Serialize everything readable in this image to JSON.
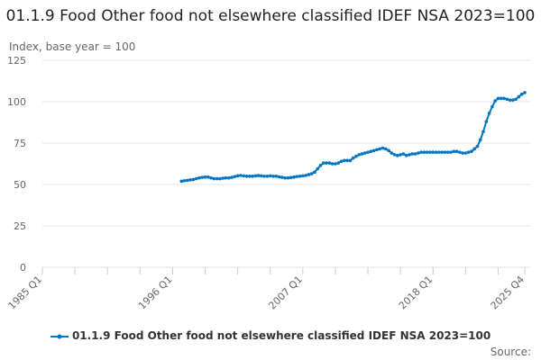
{
  "chart_data": {
    "type": "line",
    "title": "01.1.9 Food Other food not elsewhere classified IDEF NSA 2023=100",
    "ylabel": "Index, base year = 100",
    "xlabel": "",
    "ylim": [
      0,
      125
    ],
    "yticks": [
      0,
      25,
      50,
      75,
      100,
      125
    ],
    "x_range": [
      "1985 Q1",
      "2025 Q4"
    ],
    "xtick_labels": [
      "1985 Q1",
      "1996 Q1",
      "2007 Q1",
      "2018 Q1",
      "2025 Q4"
    ],
    "grid": true,
    "legend_position": "bottom",
    "series": [
      {
        "name": "01.1.9 Food Other food not elsewhere classified IDEF NSA 2023=100",
        "color": "#0075c4",
        "start": "1996 Q4",
        "frequency": "quarterly",
        "values": [
          52,
          52.3,
          52.5,
          52.8,
          53,
          53.5,
          54,
          54.3,
          54.5,
          54.5,
          54,
          53.5,
          53.5,
          53.5,
          53.8,
          54,
          54,
          54.3,
          54.8,
          55.3,
          55.5,
          55.2,
          55,
          55,
          55,
          55.2,
          55.4,
          55.2,
          55,
          55,
          55.2,
          55,
          55,
          54.6,
          54.3,
          54,
          54,
          54.2,
          54.5,
          54.8,
          55,
          55.2,
          55.5,
          56,
          56.5,
          57.5,
          59.5,
          61.5,
          63,
          63,
          63,
          62.5,
          62.5,
          63,
          64,
          64.5,
          64.5,
          64.5,
          66,
          67,
          68,
          68.5,
          69,
          69.5,
          70,
          70.5,
          71,
          71.5,
          72,
          71.5,
          70.5,
          69,
          68,
          67.5,
          68,
          68.5,
          67.5,
          68,
          68.5,
          68.5,
          69,
          69.5,
          69.5,
          69.5,
          69.5,
          69.5,
          69.5,
          69.5,
          69.5,
          69.5,
          69.5,
          69.5,
          70,
          70,
          69.5,
          69,
          69,
          69.5,
          70,
          71.5,
          73,
          77,
          82,
          88,
          93,
          97,
          100.5,
          102,
          102,
          102,
          101.5,
          101,
          101,
          101.5,
          103,
          104.5,
          105.5
        ]
      }
    ]
  },
  "source_label": "Source:"
}
